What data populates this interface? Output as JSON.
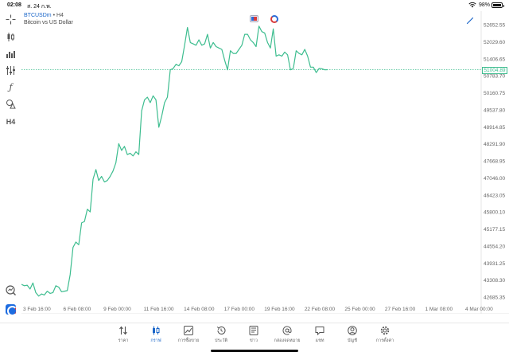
{
  "status_bar": {
    "time": "02:08",
    "date": "ส. 24 ก.พ.",
    "battery": "98%"
  },
  "symbol": {
    "name": "BTCUSDm",
    "separator": " • ",
    "timeframe": "H4",
    "description": "Bitcoin vs US Dollar"
  },
  "toolbar": {
    "timeframe_button": "H4",
    "icons": [
      "crosshair-icon",
      "candlestick-icon",
      "bar-chart-icon",
      "indicators-icon",
      "function-icon",
      "objects-icon"
    ]
  },
  "current_price": "51004.89",
  "colors": {
    "line": "#3dbd8f",
    "accent": "#1a66c9"
  },
  "chart_data": {
    "type": "line",
    "price_axis": [
      "52652.55",
      "52029.60",
      "51406.65",
      "50783.70",
      "50160.75",
      "49537.80",
      "48914.85",
      "48291.90",
      "47668.95",
      "47046.00",
      "46423.05",
      "45800.10",
      "45177.15",
      "44554.20",
      "43931.25",
      "43308.30",
      "42685.35"
    ],
    "time_axis": [
      "3 Feb 16:00",
      "6 Feb 08:00",
      "9 Feb 00:00",
      "11 Feb 16:00",
      "14 Feb 08:00",
      "17 Feb 00:00",
      "19 Feb 16:00",
      "22 Feb 08:00",
      "25 Feb 00:00",
      "27 Feb 16:00",
      "1 Mar 08:00",
      "4 Mar 00:00"
    ],
    "ylim": [
      42500,
      52900
    ],
    "series": [
      {
        "values": [
          43150,
          43100,
          43120,
          42980,
          43200,
          42850,
          42720,
          42800,
          42760,
          42900,
          42820,
          42850,
          43100,
          43050,
          42880,
          42900,
          42920,
          43500,
          44500,
          44700,
          44600,
          45400,
          45450,
          45900,
          45800,
          47000,
          47350,
          46950,
          47100,
          46900,
          46950,
          47100,
          47300,
          47600,
          48300,
          48050,
          48200,
          47900,
          47950,
          47850,
          48000,
          47900,
          49500,
          49900,
          50000,
          49800,
          50050,
          49900,
          48900,
          49300,
          49800,
          50000,
          51000,
          51050,
          51200,
          51150,
          51300,
          51900,
          52550,
          52000,
          51950,
          51900,
          52100,
          51900,
          51950,
          52300,
          51800,
          52000,
          51850,
          51800,
          51750,
          51350,
          51000,
          51700,
          51600,
          51600,
          51750,
          51900,
          52300,
          52300,
          52100,
          52000,
          51850,
          52600,
          52400,
          52350,
          52000,
          51800,
          52500,
          51500,
          51550,
          51500,
          51650,
          51550,
          51000,
          51050,
          51700,
          51600,
          51550,
          51750,
          51500,
          51100,
          51100,
          50900,
          51050,
          51040,
          51000,
          51004.89
        ]
      }
    ]
  },
  "tabs": [
    {
      "label": "ราคา",
      "icon": "quotes-icon"
    },
    {
      "label": "กราฟ",
      "icon": "chart-icon"
    },
    {
      "label": "การซื้อขาย",
      "icon": "trade-icon"
    },
    {
      "label": "ประวัติ",
      "icon": "history-icon"
    },
    {
      "label": "ข่าว",
      "icon": "news-icon"
    },
    {
      "label": "กล่องจดหมาย",
      "icon": "mailbox-icon"
    },
    {
      "label": "แชท",
      "icon": "chat-icon"
    },
    {
      "label": "บัญชี",
      "icon": "account-icon"
    },
    {
      "label": "การตั้งค่า",
      "icon": "settings-icon"
    }
  ]
}
